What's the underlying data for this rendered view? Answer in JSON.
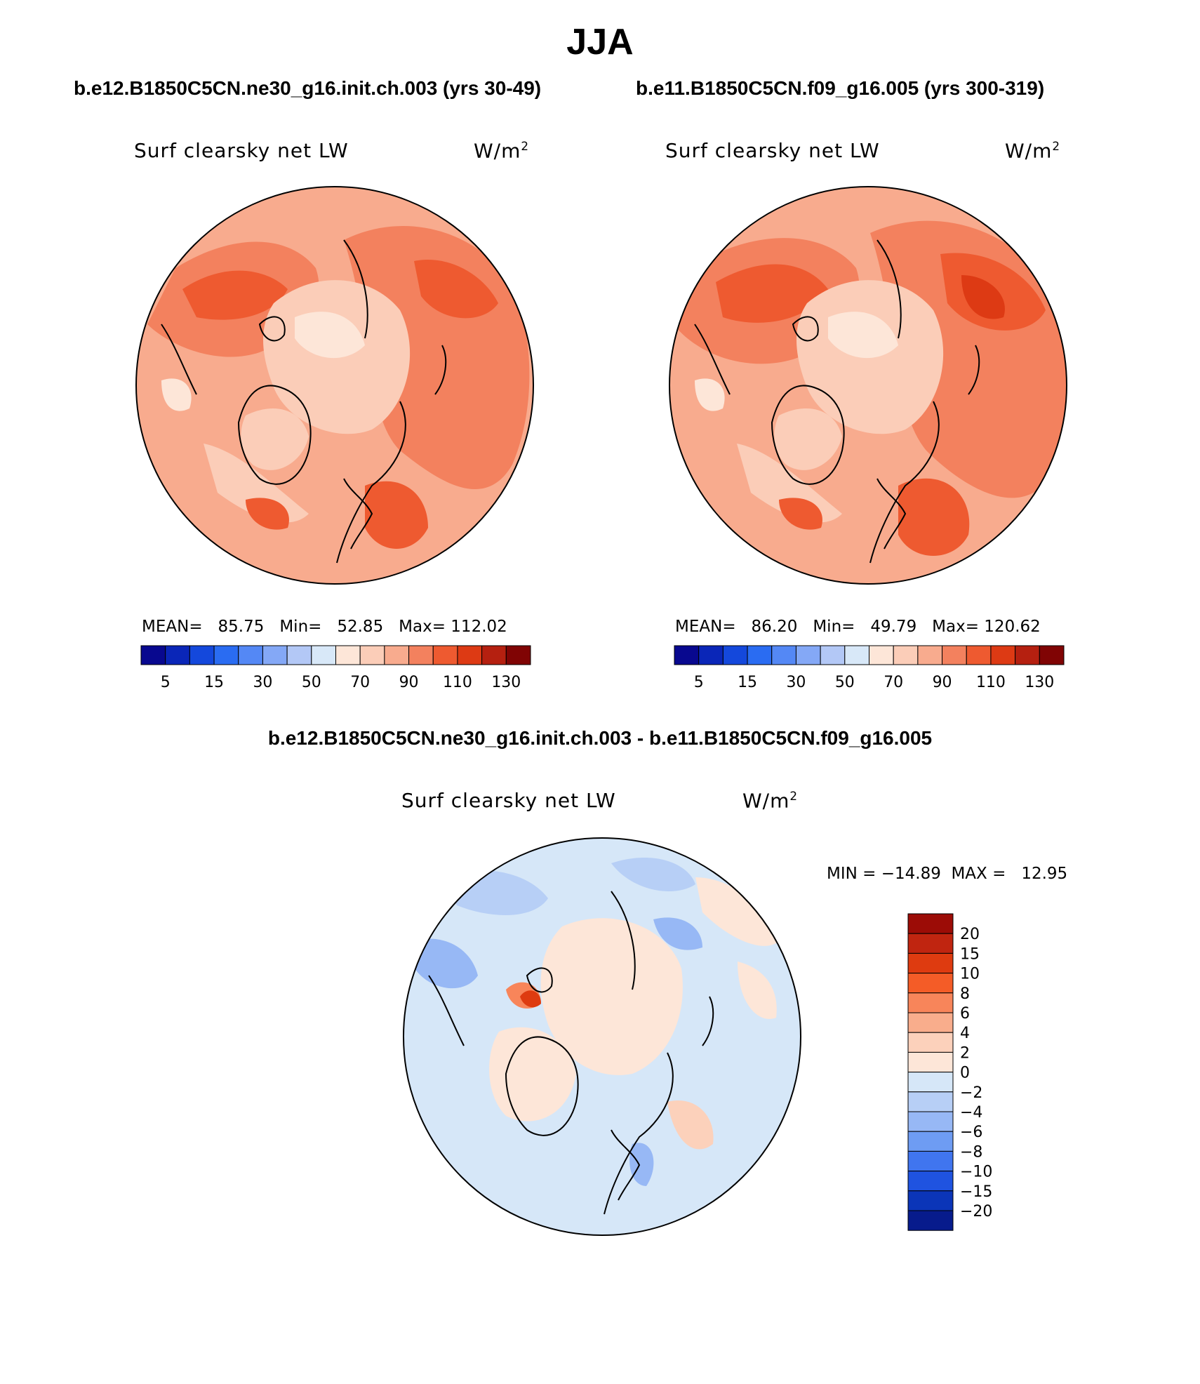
{
  "season": "JJA",
  "panels": [
    {
      "case_title": "b.e12.B1850C5CN.ne30_g16.init.ch.003 (yrs 30-49)",
      "variable": "Surf clearsky net LW",
      "units": "W/m",
      "units_exp": "2",
      "mean_label": "MEAN=",
      "mean": "85.75",
      "min_label": "Min=",
      "min": "52.85",
      "max_label": "Max=",
      "max": "112.02"
    },
    {
      "case_title": "b.e11.B1850C5CN.f09_g16.005 (yrs 300-319)",
      "variable": "Surf clearsky net LW",
      "units": "W/m",
      "units_exp": "2",
      "mean_label": "MEAN=",
      "mean": "86.20",
      "min_label": "Min=",
      "min": "49.79",
      "max_label": "Max=",
      "max": "120.62"
    }
  ],
  "difference": {
    "title": "b.e12.B1850C5CN.ne30_g16.init.ch.003 - b.e11.B1850C5CN.f09_g16.005",
    "variable": "Surf clearsky net LW",
    "units": "W/m",
    "units_exp": "2",
    "minmax_text": "MIN = −14.89  MAX =   12.95"
  },
  "abs_colorbar": {
    "colors": [
      "#08088f",
      "#0a26b8",
      "#1448dc",
      "#2a6cf2",
      "#5488f5",
      "#84a8f6",
      "#b3c8f6",
      "#d8e8f8",
      "#fde6d8",
      "#fbcdb8",
      "#f8ab8e",
      "#f3815e",
      "#ee5a30",
      "#dd3a14",
      "#b52010",
      "#800404"
    ],
    "tick_labels": [
      "5",
      "15",
      "30",
      "50",
      "70",
      "90",
      "110",
      "130"
    ]
  },
  "diff_colorbar": {
    "colors_top_to_bottom": [
      "#9c0c06",
      "#c02510",
      "#de3b10",
      "#f45c27",
      "#f8855a",
      "#f9ad8c",
      "#fcd1bb",
      "#fde6d8",
      "#d6e7f8",
      "#b7cff6",
      "#97b8f5",
      "#6e9cf3",
      "#4075ef",
      "#1f53e0",
      "#0b35b8",
      "#071b8c"
    ],
    "tick_labels": [
      "20",
      "15",
      "10",
      "8",
      "6",
      "4",
      "2",
      "0",
      "−2",
      "−4",
      "−6",
      "−8",
      "−10",
      "−15",
      "−20"
    ]
  },
  "projection": "north-polar-stereographic"
}
